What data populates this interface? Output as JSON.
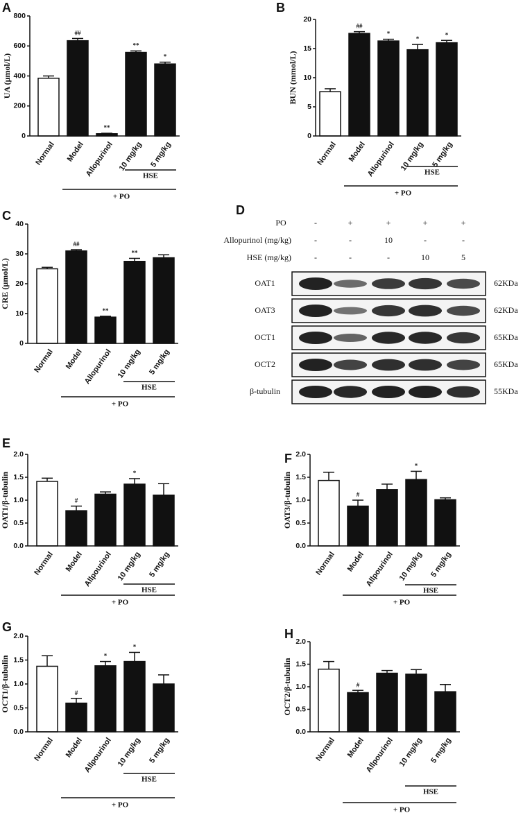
{
  "chart_data": [
    {
      "type": "bar",
      "label": "A",
      "ylabel": "UA (μmol/L)",
      "categories": [
        "Normal",
        "Model",
        "Allopurinol",
        "10 mg/kg",
        "5 mg/kg"
      ],
      "values": [
        385,
        635,
        15,
        557,
        480
      ],
      "errors": [
        15,
        15,
        3,
        10,
        12
      ],
      "annotations": [
        null,
        "##",
        "**",
        "**",
        "*"
      ],
      "colors": [
        "#ffffff",
        "#111111",
        "#111111",
        "#111111",
        "#111111"
      ],
      "ylim": [
        0,
        800
      ],
      "yticks": [
        0,
        200,
        400,
        600,
        800
      ],
      "subgroup_label": "HSE",
      "group_label": "+ PO"
    },
    {
      "type": "bar",
      "label": "B",
      "ylabel": "BUN (mmol/L)",
      "categories": [
        "Normal",
        "Model",
        "Allopurinol",
        "10 mg/kg",
        "5 mg/kg"
      ],
      "values": [
        7.6,
        17.6,
        16.3,
        14.8,
        16.0
      ],
      "errors": [
        0.5,
        0.3,
        0.3,
        0.9,
        0.4
      ],
      "annotations": [
        null,
        "##",
        "*",
        "*",
        "*"
      ],
      "colors": [
        "#ffffff",
        "#111111",
        "#111111",
        "#111111",
        "#111111"
      ],
      "ylim": [
        0,
        20
      ],
      "yticks": [
        0,
        5,
        10,
        15,
        20
      ],
      "subgroup_label": "HSE",
      "group_label": "+ PO"
    },
    {
      "type": "bar",
      "label": "C",
      "ylabel": "CRE (μmol/L)",
      "categories": [
        "Normal",
        "Model",
        "Allopurinol",
        "10 mg/kg",
        "5 mg/kg"
      ],
      "values": [
        25,
        31,
        8.8,
        27.5,
        28.7
      ],
      "errors": [
        0.5,
        0.4,
        0.3,
        1,
        1
      ],
      "annotations": [
        null,
        "##",
        "**",
        "**",
        null
      ],
      "colors": [
        "#ffffff",
        "#111111",
        "#111111",
        "#111111",
        "#111111"
      ],
      "ylim": [
        0,
        40
      ],
      "yticks": [
        0,
        10,
        20,
        30,
        40
      ],
      "subgroup_label": "HSE",
      "group_label": "+ PO"
    },
    {
      "type": "bar",
      "label": "E",
      "ylabel": "OAT1/β-tubulin",
      "categories": [
        "Normal",
        "Model",
        "Allpourinol",
        "10 mg/kg",
        "5 mg/kg"
      ],
      "values": [
        1.41,
        0.77,
        1.13,
        1.35,
        1.11
      ],
      "errors": [
        0.07,
        0.1,
        0.05,
        0.12,
        0.25
      ],
      "annotations": [
        null,
        "#",
        null,
        "*",
        null
      ],
      "colors": [
        "#ffffff",
        "#111111",
        "#111111",
        "#111111",
        "#111111"
      ],
      "ylim": [
        0,
        2
      ],
      "yticks": [
        {
          "value": 0,
          "label": "0.0"
        },
        0.5,
        {
          "value": 1,
          "label": "1.0"
        },
        1.5,
        {
          "value": 2,
          "label": "2.0"
        }
      ],
      "subgroup_label": "HSE",
      "group_label": "+ PO"
    },
    {
      "type": "bar",
      "label": "F",
      "ylabel": "OAT3/β-tubulin",
      "categories": [
        "Normal",
        "Model",
        "Allpourinol",
        "10 mg/kg",
        "5 mg/kg"
      ],
      "values": [
        1.43,
        0.87,
        1.23,
        1.45,
        1.01
      ],
      "errors": [
        0.18,
        0.13,
        0.12,
        0.18,
        0.04
      ],
      "annotations": [
        null,
        "#",
        null,
        "*",
        null
      ],
      "colors": [
        "#ffffff",
        "#111111",
        "#111111",
        "#111111",
        "#111111"
      ],
      "ylim": [
        0,
        2
      ],
      "yticks": [
        {
          "value": 0,
          "label": "0.0"
        },
        0.5,
        {
          "value": 1,
          "label": "1.0"
        },
        1.5,
        {
          "value": 2,
          "label": "2.0"
        }
      ],
      "subgroup_label": "HSE",
      "group_label": "+ PO"
    },
    {
      "type": "bar",
      "label": "G",
      "ylabel": "OCT1/β-tubulin",
      "categories": [
        "Normal",
        "Model",
        "Allpourinol",
        "10 mg/kg",
        "5 mg/kg"
      ],
      "values": [
        1.37,
        0.6,
        1.38,
        1.47,
        1.0
      ],
      "errors": [
        0.22,
        0.1,
        0.09,
        0.19,
        0.19
      ],
      "annotations": [
        null,
        "#",
        "*",
        "*",
        null
      ],
      "colors": [
        "#ffffff",
        "#111111",
        "#111111",
        "#111111",
        "#111111"
      ],
      "ylim": [
        0,
        2
      ],
      "yticks": [
        {
          "value": 0,
          "label": "0.0"
        },
        0.5,
        {
          "value": 1,
          "label": "1.0"
        },
        1.5,
        {
          "value": 2,
          "label": "2.0"
        }
      ],
      "subgroup_label": "HSE",
      "group_label": "+ PO"
    },
    {
      "type": "bar",
      "label": "H",
      "ylabel": "OCT2/β-tubulin",
      "categories": [
        "Normal",
        "Model",
        "Allpourinol",
        "10 mg/kg",
        "5 mg/kg"
      ],
      "values": [
        1.39,
        0.87,
        1.3,
        1.28,
        0.89
      ],
      "errors": [
        0.17,
        0.05,
        0.06,
        0.1,
        0.16
      ],
      "annotations": [
        null,
        "#",
        null,
        null,
        null
      ],
      "colors": [
        "#ffffff",
        "#111111",
        "#111111",
        "#111111",
        "#111111"
      ],
      "ylim": [
        0,
        2
      ],
      "yticks": [
        {
          "value": 0,
          "label": "0.0"
        },
        0.5,
        {
          "value": 1,
          "label": "1.0"
        },
        1.5,
        {
          "value": 2,
          "label": "2.0"
        }
      ],
      "subgroup_label": "HSE",
      "group_label": "+ PO"
    }
  ],
  "blot": {
    "label": "D",
    "conditions": [
      {
        "name": "PO",
        "values": [
          "-",
          "+",
          "+",
          "+",
          "+"
        ]
      },
      {
        "name": "Allopurinol (mg/kg)",
        "values": [
          "-",
          "-",
          "10",
          "-",
          "-"
        ]
      },
      {
        "name": "HSE (mg/kg)",
        "values": [
          "-",
          "-",
          "-",
          "10",
          "5"
        ]
      }
    ],
    "proteins": [
      {
        "name": "OAT1",
        "size": "62KDa"
      },
      {
        "name": "OAT3",
        "size": "62KDa"
      },
      {
        "name": "OCT1",
        "size": "65KDa"
      },
      {
        "name": "OCT2",
        "size": "65KDa"
      },
      {
        "name": "β-tubulin",
        "size": "55KDa"
      }
    ]
  }
}
